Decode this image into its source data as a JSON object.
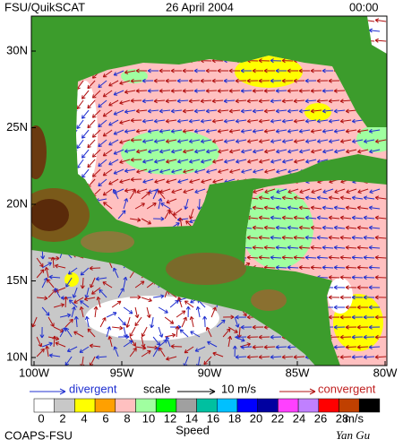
{
  "header": {
    "title": "FSU/QuikSCAT",
    "date": "26 April 2004",
    "time": "00:00"
  },
  "map": {
    "lat_labels": [
      "30N",
      "25N",
      "20N",
      "15N",
      "10N"
    ],
    "lon_labels": [
      "100W",
      "95W",
      "90W",
      "85W",
      "80W"
    ]
  },
  "legend": {
    "divergent": "divergent",
    "scale": "scale",
    "scale_value": "10 m/s",
    "convergent": "convergent"
  },
  "colorbar": {
    "labels": [
      0,
      2,
      4,
      6,
      8,
      10,
      12,
      14,
      16,
      18,
      20,
      22,
      24,
      26,
      28
    ],
    "colors": [
      "#ffffff",
      "#c8c8c8",
      "#ffff00",
      "#ffa000",
      "#ffc0c0",
      "#a0ffa0",
      "#00ff00",
      "#a0a0a0",
      "#00c0a0",
      "#00c0ff",
      "#0000ff",
      "#0000a0",
      "#ff40ff",
      "#c080ff",
      "#ff0000",
      "#c04000",
      "#000000"
    ],
    "unit": "m/s",
    "title": "Speed"
  },
  "footer": {
    "left": "COAPS-FSU",
    "right": "Yan Gu"
  }
}
